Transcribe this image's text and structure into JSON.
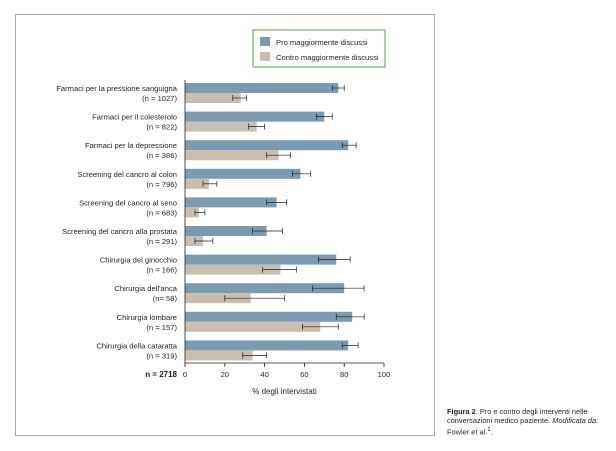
{
  "chart_data": {
    "type": "bar",
    "orientation": "horizontal",
    "categories": [
      {
        "label": "Farmaci per la pressione sanguigna",
        "n": "(n = 1027)"
      },
      {
        "label": "Farmaci per il colesterolo",
        "n": "(n = 822)"
      },
      {
        "label": "Farmaci per la depressione",
        "n": "(n = 386)"
      },
      {
        "label": "Screening del cancro al colon",
        "n": "(n = 796)"
      },
      {
        "label": "Screening del cancro al seno",
        "n": "(n = 683)"
      },
      {
        "label": "Screening del cancro alla prostata",
        "n": "(n = 291)"
      },
      {
        "label": "Chirurgia del ginocchio",
        "n": "(n = 166)"
      },
      {
        "label": "Chirurgia dell'anca",
        "n": "(n= 58)"
      },
      {
        "label": "Chirurgia lombare",
        "n": "(n = 157)"
      },
      {
        "label": "Chirurgia della cataratta",
        "n": "(n = 319)"
      }
    ],
    "series": [
      {
        "name": "Pro maggiormente discussi",
        "color": "#7d9bb0",
        "values": [
          77,
          70,
          82,
          58,
          46,
          41,
          76,
          80,
          84,
          82
        ],
        "error_low": [
          74,
          66,
          79,
          54,
          41,
          34,
          67,
          64,
          76,
          79
        ],
        "error_high": [
          80,
          74,
          86,
          63,
          51,
          49,
          83,
          90,
          90,
          87
        ]
      },
      {
        "name": "Contro maggiormente discussi",
        "color": "#c9beb1",
        "values": [
          28,
          36,
          47,
          12,
          7,
          9,
          48,
          33,
          68,
          34
        ],
        "error_low": [
          24,
          32,
          41,
          9,
          5,
          5,
          39,
          20,
          59,
          29
        ],
        "error_high": [
          31,
          40,
          53,
          16,
          10,
          14,
          56,
          50,
          77,
          41
        ]
      }
    ],
    "xlabel": "% degli intervistati",
    "xlim": [
      0,
      100
    ],
    "xticks": [
      "0",
      "20",
      "40",
      "60",
      "80",
      "100"
    ],
    "total_label": "n = 2718",
    "legend_position": "top-right",
    "grid": false
  },
  "caption": {
    "label": "Figura 2",
    "text": ". Pro e contro degli interventi nelle conversazioni medico paziente.",
    "modified_label": "Modificata da",
    "source": ": Fowler et al.",
    "ref": "1",
    "end": "."
  }
}
